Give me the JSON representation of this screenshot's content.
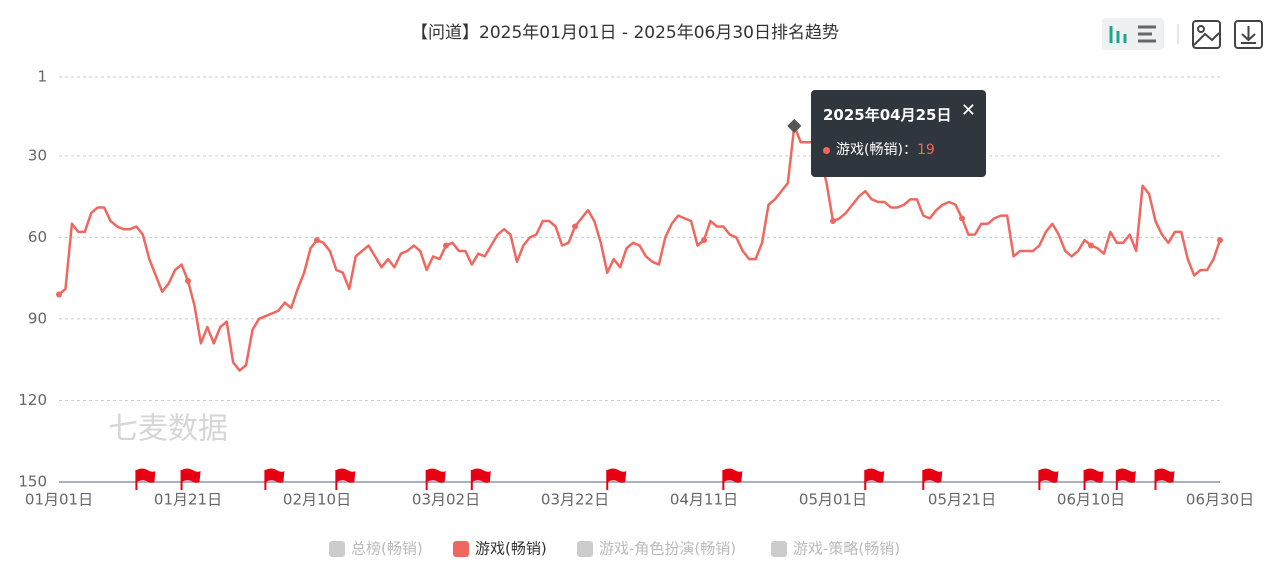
{
  "chart_data": {
    "type": "line",
    "title": "【问道】2025年01月01日 - 2025年06月30日排名趋势",
    "watermark": "七麦数据",
    "categories": [
      "01月01日",
      null,
      null,
      null,
      null,
      null,
      null,
      null,
      null,
      null,
      null,
      null,
      null,
      null,
      null,
      null,
      null,
      null,
      null,
      null,
      "01月21日",
      null,
      null,
      null,
      null,
      null,
      null,
      null,
      null,
      null,
      null,
      null,
      null,
      null,
      null,
      null,
      null,
      null,
      null,
      null,
      "02月10日",
      null,
      null,
      null,
      null,
      null,
      null,
      null,
      null,
      null,
      null,
      null,
      null,
      null,
      null,
      null,
      null,
      null,
      null,
      null,
      "03月02日",
      null,
      null,
      null,
      null,
      null,
      null,
      null,
      null,
      null,
      null,
      null,
      null,
      null,
      null,
      null,
      null,
      null,
      null,
      null,
      "03月22日",
      null,
      null,
      null,
      null,
      null,
      null,
      null,
      null,
      null,
      null,
      null,
      null,
      null,
      null,
      null,
      null,
      null,
      null,
      null,
      "04月11日",
      null,
      null,
      null,
      null,
      null,
      null,
      null,
      null,
      null,
      null,
      null,
      null,
      null,
      null,
      null,
      null,
      null,
      null,
      null,
      "05月01日",
      null,
      null,
      null,
      null,
      null,
      null,
      null,
      null,
      null,
      null,
      null,
      null,
      null,
      null,
      null,
      null,
      null,
      null,
      null,
      "05月21日",
      null,
      null,
      null,
      null,
      null,
      null,
      null,
      null,
      null,
      null,
      null,
      null,
      null,
      null,
      null,
      null,
      null,
      null,
      null,
      "06月10日",
      null,
      null,
      null,
      null,
      null,
      null,
      null,
      null,
      null,
      null,
      null,
      null,
      null,
      null,
      null,
      null,
      null,
      null,
      null,
      "06月30日"
    ],
    "series": [
      {
        "name": "总榜(畅销)",
        "color": "#cccccc",
        "visible": false
      },
      {
        "name": "游戏(畅销)",
        "color": "#f0675f",
        "visible": true,
        "values": [
          81,
          79,
          55,
          58,
          58,
          51,
          49,
          49,
          54,
          56,
          57,
          57,
          56,
          59,
          68,
          74,
          80,
          77,
          72,
          70,
          76,
          85,
          99,
          93,
          99,
          93,
          91,
          106,
          109,
          107,
          94,
          90,
          89,
          88,
          87,
          84,
          86,
          79,
          73,
          64,
          61,
          62,
          65,
          72,
          73,
          79,
          67,
          65,
          63,
          67,
          71,
          68,
          71,
          66,
          65,
          63,
          65,
          72,
          67,
          68,
          63,
          62,
          65,
          65,
          70,
          66,
          67,
          63,
          59,
          57,
          59,
          69,
          63,
          60,
          59,
          54,
          54,
          56,
          63,
          62,
          56,
          53,
          50,
          54,
          62,
          73,
          68,
          71,
          64,
          62,
          63,
          67,
          69,
          70,
          60,
          55,
          52,
          53,
          54,
          63,
          61,
          54,
          56,
          56,
          59,
          60,
          65,
          68,
          68,
          62,
          48,
          46,
          43,
          40,
          19,
          25,
          25,
          25,
          30,
          40,
          54,
          53,
          51,
          48,
          45,
          43,
          46,
          47,
          47,
          49,
          49,
          48,
          46,
          46,
          52,
          53,
          50,
          48,
          47,
          48,
          53,
          59,
          59,
          55,
          55,
          53,
          52,
          52,
          67,
          65,
          65,
          65,
          63,
          58,
          55,
          59,
          65,
          67,
          65,
          61,
          63,
          64,
          66,
          58,
          62,
          62,
          59,
          65,
          41,
          44,
          54,
          59,
          62,
          58,
          58,
          68,
          74,
          72,
          72,
          68,
          61
        ]
      },
      {
        "name": "游戏-角色扮演(畅销)",
        "color": "#cccccc",
        "visible": false
      },
      {
        "name": "游戏-策略(畅销)",
        "color": "#cccccc",
        "visible": false
      }
    ],
    "ylim": [
      1,
      150
    ],
    "y_inverted": true,
    "yticks": [
      1,
      30,
      60,
      90,
      120,
      150
    ],
    "grid": true,
    "event_markers": [
      12,
      19,
      32,
      43,
      57,
      64,
      85,
      103,
      125,
      134,
      152,
      159,
      164,
      170
    ],
    "event_color": "#e60012",
    "tooltip": {
      "title": "2025年04月25日",
      "series": 1,
      "index": 114,
      "separator": "："
    }
  }
}
